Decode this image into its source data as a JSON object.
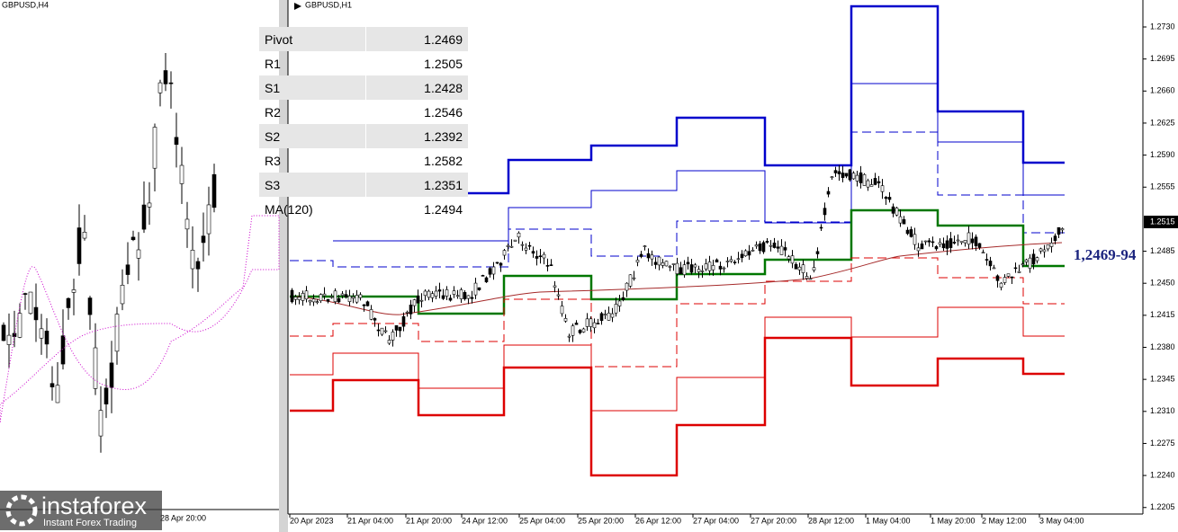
{
  "left_panel": {
    "title": "GBPUSD,H4",
    "time_label": "28 Apr 20:00"
  },
  "right_panel": {
    "title": "GBPUSD,H1",
    "pivot_table": {
      "rows": [
        [
          "Pivot",
          "1.2469"
        ],
        [
          "R1",
          "1.2505"
        ],
        [
          "S1",
          "1.2428"
        ],
        [
          "R2",
          "1.2546"
        ],
        [
          "S2",
          "1.2392"
        ],
        [
          "R3",
          "1.2582"
        ],
        [
          "S3",
          "1.2351"
        ],
        [
          "MA(120)",
          "1.2494"
        ]
      ]
    },
    "level_label": "1,2469-94",
    "current_price": "1.2515",
    "price_axis": [
      "1.2730",
      "1.2695",
      "1.2660",
      "1.2625",
      "1.2590",
      "1.2555",
      "1.2485",
      "1.2450",
      "1.2415",
      "1.2380",
      "1.2345",
      "1.2310",
      "1.2275",
      "1.2240",
      "1.2205"
    ],
    "time_axis": [
      "20 Apr 2023",
      "21 Apr 04:00",
      "21 Apr 20:00",
      "24 Apr 12:00",
      "25 Apr 04:00",
      "25 Apr 20:00",
      "26 Apr 12:00",
      "27 Apr 04:00",
      "27 Apr 20:00",
      "28 Apr 12:00",
      "1 May 04:00",
      "1 May 20:00",
      "2 May 12:00",
      "3 May 04:00"
    ]
  },
  "watermark": {
    "brand": "instaforex",
    "tagline": "Instant Forex Trading"
  }
}
